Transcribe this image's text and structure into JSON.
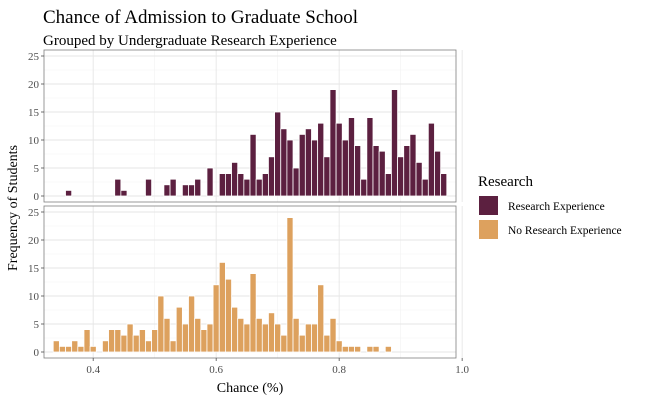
{
  "chart_data": {
    "type": "bar",
    "title": "Chance of Admission to Graduate School",
    "subtitle": "Grouped by Undergraduate Research Experience",
    "xlabel": "Chance (%)",
    "ylabel": "Frequency of Students",
    "xlim": [
      0.32,
      0.99
    ],
    "ylim": [
      0,
      25
    ],
    "xticks": [
      "0.4",
      "0.6",
      "0.8",
      "1.0"
    ],
    "xtick_values": [
      0.4,
      0.6,
      0.8,
      1.0
    ],
    "yticks": [
      "0",
      "5",
      "10",
      "15",
      "20",
      "25"
    ],
    "ytick_values": [
      0,
      5,
      10,
      15,
      20,
      25
    ],
    "grid": true,
    "bin_width": 0.01,
    "legend": {
      "title": "Research",
      "position": "right",
      "entries": [
        "Research Experience",
        "No Research Experience"
      ]
    },
    "series": [
      {
        "name": "Research Experience",
        "color": "#5c2040",
        "x": [
          0.36,
          0.44,
          0.45,
          0.49,
          0.52,
          0.53,
          0.55,
          0.56,
          0.57,
          0.59,
          0.61,
          0.62,
          0.63,
          0.64,
          0.65,
          0.66,
          0.67,
          0.68,
          0.69,
          0.7,
          0.71,
          0.72,
          0.73,
          0.74,
          0.75,
          0.76,
          0.77,
          0.78,
          0.79,
          0.8,
          0.81,
          0.82,
          0.83,
          0.84,
          0.85,
          0.86,
          0.87,
          0.88,
          0.89,
          0.9,
          0.91,
          0.92,
          0.93,
          0.94,
          0.95,
          0.96,
          0.97
        ],
        "values": [
          1,
          3,
          1,
          3,
          2,
          3,
          2,
          2,
          3,
          5,
          4,
          4,
          6,
          4,
          3,
          11,
          3,
          4,
          7,
          15,
          12,
          10,
          5,
          11,
          12,
          10,
          13,
          7,
          19,
          13,
          10,
          14,
          9,
          3,
          14,
          9,
          8,
          4,
          19,
          7,
          9,
          11,
          6,
          3,
          13,
          8,
          4
        ]
      },
      {
        "name": "No Research Experience",
        "color": "#dda15e",
        "x": [
          0.34,
          0.35,
          0.36,
          0.37,
          0.38,
          0.39,
          0.4,
          0.42,
          0.43,
          0.44,
          0.45,
          0.46,
          0.47,
          0.48,
          0.49,
          0.5,
          0.51,
          0.52,
          0.53,
          0.54,
          0.55,
          0.56,
          0.57,
          0.58,
          0.59,
          0.6,
          0.61,
          0.62,
          0.63,
          0.64,
          0.65,
          0.66,
          0.67,
          0.68,
          0.69,
          0.7,
          0.71,
          0.72,
          0.73,
          0.74,
          0.75,
          0.76,
          0.77,
          0.78,
          0.79,
          0.8,
          0.81,
          0.82,
          0.83,
          0.84,
          0.85,
          0.86,
          0.87,
          0.88,
          0.89
        ],
        "values": [
          2,
          1,
          1,
          2,
          1,
          4,
          1,
          2,
          4,
          4,
          3,
          5,
          3,
          4,
          2,
          4,
          10,
          6,
          2,
          8,
          5,
          10,
          6,
          4,
          5,
          12,
          16,
          13,
          8,
          6,
          5,
          14,
          6,
          5,
          7,
          5,
          3,
          24,
          6,
          3,
          5,
          5,
          12,
          3,
          6,
          2,
          1,
          1,
          1,
          0,
          1,
          1,
          0,
          1,
          0
        ]
      }
    ]
  }
}
